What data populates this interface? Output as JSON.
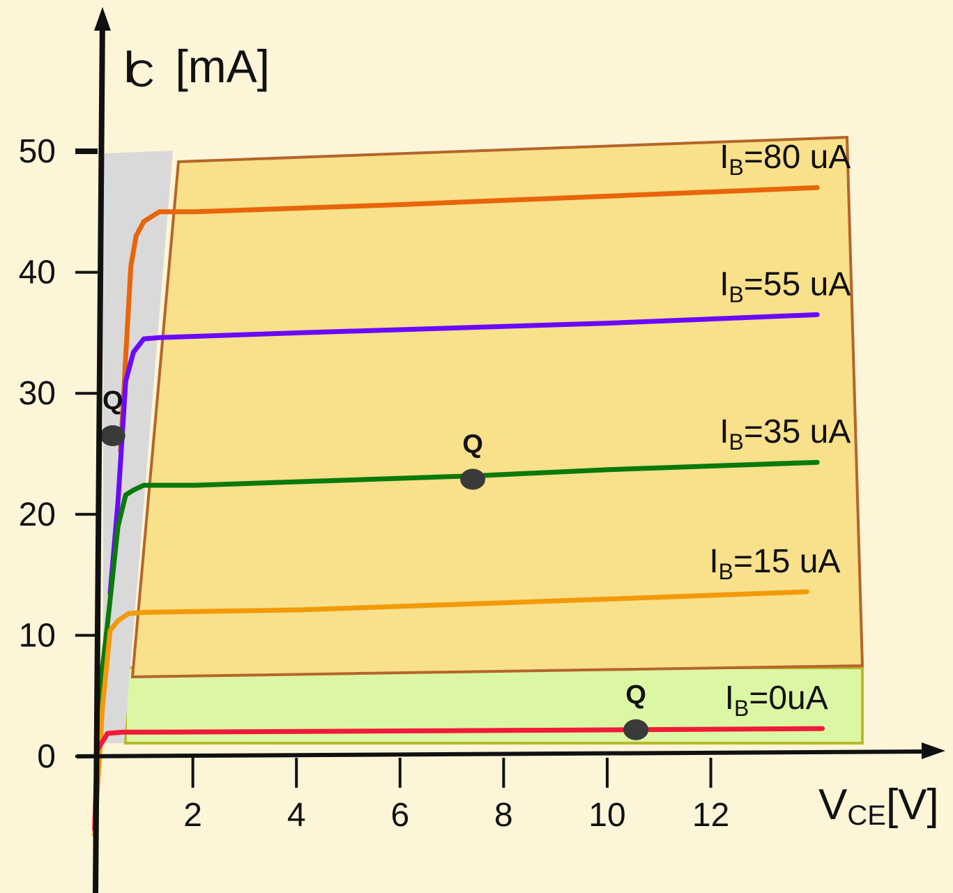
{
  "chart_data": {
    "type": "line",
    "title": "",
    "xlabel": {
      "main": "V",
      "sub": "CE",
      "unit": "[V]"
    },
    "ylabel": {
      "main": "I",
      "sub": "C",
      "unit": "[mA]"
    },
    "xlim": [
      0,
      14
    ],
    "ylim": [
      0,
      50
    ],
    "x_ticks": [
      2,
      4,
      6,
      8,
      10,
      12
    ],
    "y_ticks": [
      0,
      10,
      20,
      30,
      40,
      50
    ],
    "grid": false,
    "regions": [
      {
        "name": "saturation",
        "color": "#d9d9d9"
      },
      {
        "name": "active",
        "color": "#f9e08a",
        "border": "#b5652a"
      },
      {
        "name": "cutoff",
        "color": "#dcf7a4",
        "border": "#b9b92a"
      }
    ],
    "series": [
      {
        "name": "I",
        "sub": "B",
        "value": "=80 uA",
        "color": "#e8650a",
        "points": [
          [
            0.55,
            25.2
          ],
          [
            0.65,
            33
          ],
          [
            0.75,
            40.5
          ],
          [
            0.85,
            43
          ],
          [
            1,
            44.2
          ],
          [
            1.3,
            45.0
          ],
          [
            2,
            45.0
          ],
          [
            6,
            45.6
          ],
          [
            10,
            46.3
          ],
          [
            14,
            47.0
          ]
        ]
      },
      {
        "name": "I",
        "sub": "B",
        "value": "=55 uA",
        "color": "#6a0aff",
        "points": [
          [
            0.35,
            13.5
          ],
          [
            0.5,
            21
          ],
          [
            0.65,
            31
          ],
          [
            0.8,
            33.4
          ],
          [
            1.0,
            34.5
          ],
          [
            1.3,
            34.6
          ],
          [
            4,
            35.0
          ],
          [
            10,
            35.8
          ],
          [
            14,
            36.5
          ]
        ]
      },
      {
        "name": "I",
        "sub": "B",
        "value": "=35 uA",
        "color": "#0a7a0a",
        "points": [
          [
            0.1,
            3.5
          ],
          [
            0.3,
            11
          ],
          [
            0.5,
            19
          ],
          [
            0.65,
            21.6
          ],
          [
            0.8,
            22.0
          ],
          [
            1.0,
            22.4
          ],
          [
            2,
            22.4
          ],
          [
            7.5,
            23.2
          ],
          [
            10,
            23.7
          ],
          [
            14,
            24.3
          ]
        ]
      },
      {
        "name": "I",
        "sub": "B",
        "value": "=15 uA",
        "color": "#f29a0a",
        "points": [
          [
            0.05,
            -6.5
          ],
          [
            0.2,
            4
          ],
          [
            0.35,
            10.4
          ],
          [
            0.5,
            11.2
          ],
          [
            0.7,
            11.8
          ],
          [
            1.0,
            11.9
          ],
          [
            4,
            12.1
          ],
          [
            10,
            13.0
          ],
          [
            13.8,
            13.6
          ]
        ]
      },
      {
        "name": "I",
        "sub": "B",
        "value": "=0uA",
        "color": "#f01a3a",
        "points": [
          [
            0.05,
            -6
          ],
          [
            0.1,
            0.5
          ],
          [
            0.3,
            1.9
          ],
          [
            0.6,
            2.0
          ],
          [
            1,
            2.0
          ],
          [
            6,
            2.1
          ],
          [
            10.5,
            2.2
          ],
          [
            14.1,
            2.3
          ]
        ]
      }
    ],
    "annotations": [
      {
        "label": "Q",
        "x": 0.4,
        "y": 26.5
      },
      {
        "label": "Q",
        "x": 7.35,
        "y": 22.9
      },
      {
        "label": "Q",
        "x": 10.5,
        "y": 2.2
      }
    ]
  }
}
